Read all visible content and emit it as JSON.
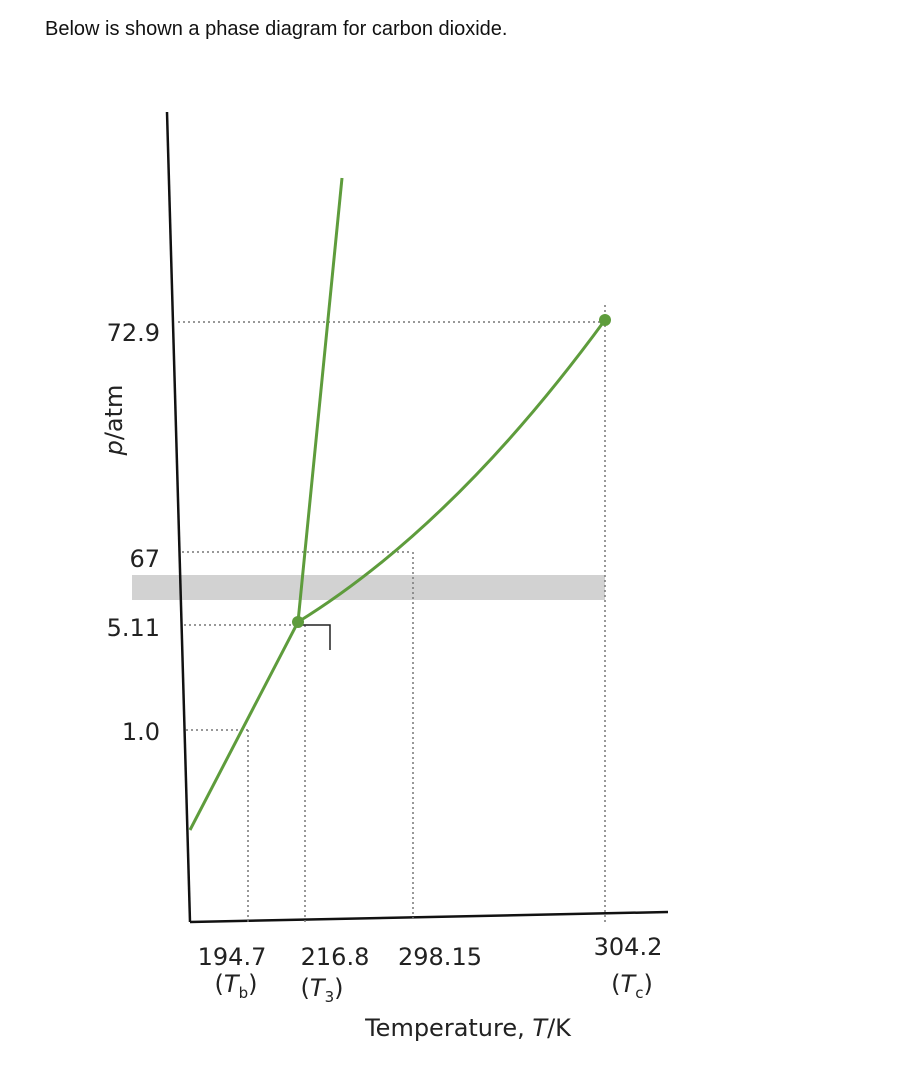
{
  "intro": "Below is shown a phase diagram for carbon dioxide.",
  "y_axis": {
    "symbol": "p",
    "unit": "/atm",
    "labels": [
      "72.9",
      "67",
      "5.11",
      "1.0"
    ]
  },
  "x_axis": {
    "title": "Temperature, ",
    "symbol": "T",
    "unit": "/K",
    "labels": [
      {
        "value": "194.7",
        "open": "(",
        "symbol": "T",
        "subscript": "b",
        "close": ")"
      },
      {
        "value": "216.8",
        "open": "(",
        "symbol": "T",
        "subscript": "3",
        "close": ")"
      },
      {
        "value": "298.15"
      },
      {
        "value": "304.2",
        "open": "(",
        "symbol": "T",
        "subscript": "c",
        "close": ")"
      }
    ]
  }
}
